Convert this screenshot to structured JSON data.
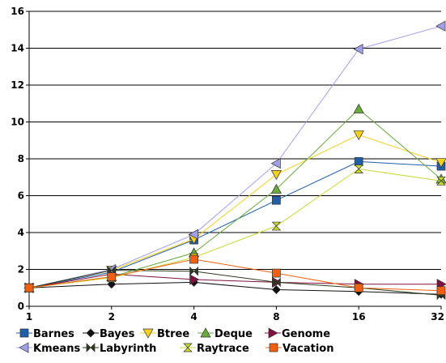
{
  "chart_data": {
    "type": "line",
    "x": [
      1,
      2,
      4,
      8,
      16,
      32
    ],
    "x_scale": "log2",
    "ylim": [
      0,
      16
    ],
    "yticks": [
      0,
      2,
      4,
      6,
      8,
      10,
      12,
      14,
      16
    ],
    "grid": true,
    "legend_position": "bottom",
    "title": "",
    "xlabel": "",
    "ylabel": "",
    "series": [
      {
        "name": "Barnes",
        "color": "#1f5fa8",
        "marker": "square",
        "values": [
          1,
          1.85,
          3.6,
          5.75,
          7.85,
          7.6
        ]
      },
      {
        "name": "Bayes",
        "color": "#111111",
        "marker": "diamond",
        "values": [
          1,
          1.2,
          1.3,
          0.9,
          0.8,
          0.65
        ]
      },
      {
        "name": "Btree",
        "color": "#f5d020",
        "marker": "triangle-down",
        "values": [
          1,
          1.95,
          3.65,
          7.15,
          9.3,
          7.8
        ]
      },
      {
        "name": "Deque",
        "color": "#6aaa3c",
        "marker": "triangle-up",
        "values": [
          1,
          1.6,
          2.9,
          6.35,
          10.7,
          6.9
        ]
      },
      {
        "name": "Genome",
        "color": "#801040",
        "marker": "triangle-right",
        "values": [
          1,
          1.75,
          1.45,
          1.3,
          1.2,
          1.2
        ]
      },
      {
        "name": "Kmeans",
        "color": "#a0a0e8",
        "marker": "triangle-left",
        "values": [
          1,
          2.0,
          3.9,
          7.75,
          13.95,
          15.2
        ]
      },
      {
        "name": "Labyrinth",
        "color": "#2a3a1a",
        "marker": "bowtie",
        "values": [
          1,
          1.95,
          1.9,
          1.3,
          1.0,
          0.6
        ]
      },
      {
        "name": "Raytrace",
        "color": "#c8d830",
        "marker": "hourglass",
        "values": [
          1,
          1.55,
          2.65,
          4.35,
          7.45,
          6.8
        ]
      },
      {
        "name": "Vacation",
        "color": "#f06010",
        "marker": "square",
        "values": [
          1,
          1.6,
          2.55,
          1.8,
          1.0,
          0.85
        ]
      }
    ]
  }
}
